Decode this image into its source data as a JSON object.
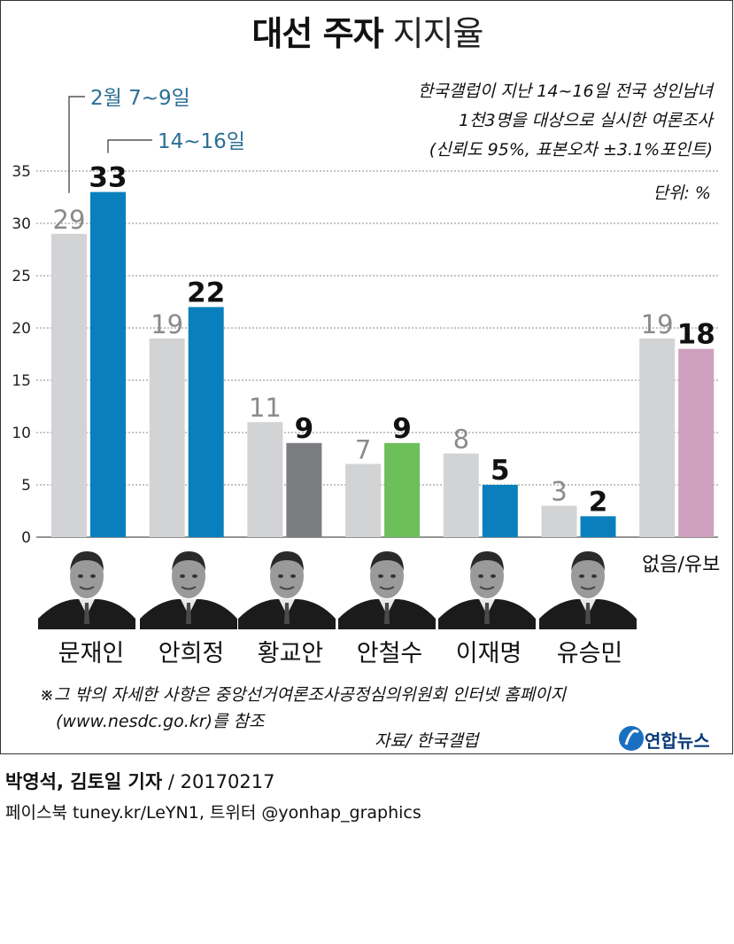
{
  "title": {
    "bold": "대선 주자",
    "light": "지지율"
  },
  "subtitle_lines": [
    "한국갤럽이 지난 14~16일 전국 성인남녀",
    "1천3명을 대상으로 실시한 여론조사",
    "(신뢰도 95%, 표본오차 ±3.1%포인트)"
  ],
  "unit": "단위: %",
  "legend": {
    "prev": "2월 7~9일",
    "curr": "14~16일"
  },
  "chart_data": {
    "type": "bar",
    "categories": [
      "문재인",
      "안희정",
      "황교안",
      "안철수",
      "이재명",
      "유승민",
      "없음/유보"
    ],
    "series": [
      {
        "name": "2월 7~9일",
        "values": [
          29,
          19,
          11,
          7,
          8,
          3,
          19
        ]
      },
      {
        "name": "14~16일",
        "values": [
          33,
          22,
          9,
          9,
          5,
          2,
          18
        ]
      }
    ],
    "prev_color": "#d2d3d5",
    "curr_colors": [
      "#0a7fbd",
      "#0a7fbd",
      "#7b7d80",
      "#6dbf5a",
      "#0a7fbd",
      "#0a7fbd",
      "#cfa0bd"
    ],
    "yticks": [
      0,
      5,
      10,
      15,
      20,
      25,
      30,
      35
    ],
    "ylim": [
      0,
      35
    ],
    "grid": "dashed"
  },
  "note_line1": "※그 밖의 자세한 사항은 중앙선거여론조사공정심의위원회 인터넷 홈페이지",
  "note_line2": "(www.nesdc.go.kr)를 참조",
  "source": "자료/ 한국갤럽",
  "logo_text": "연합뉴스",
  "credit": {
    "bold": "박영석, 김토일 기자",
    "rest": " / 20170217"
  },
  "social": "페이스북 tuney.kr/LeYN1, 트위터 @yonhap_graphics"
}
